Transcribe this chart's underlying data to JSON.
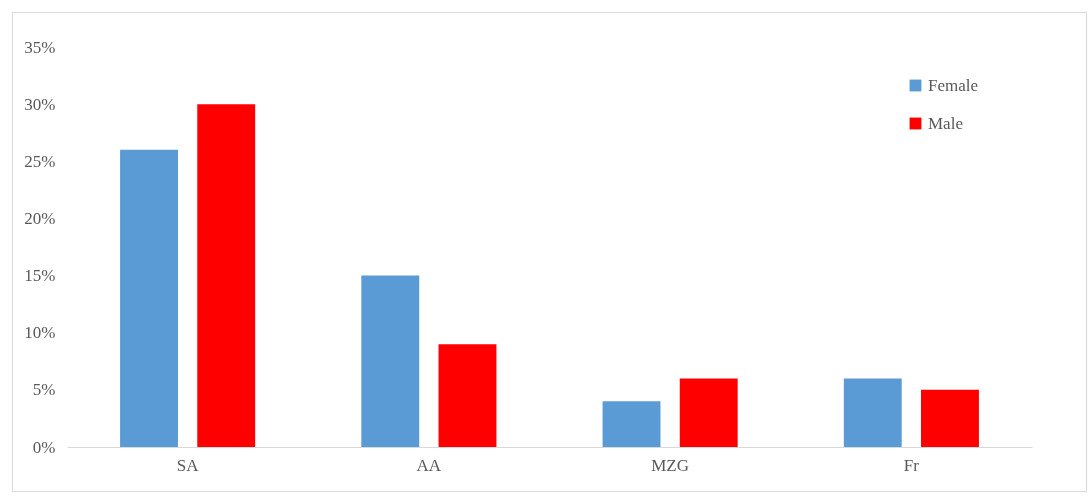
{
  "chart_data": {
    "type": "bar",
    "categories": [
      "SA",
      "AA",
      "MZG",
      "Fr"
    ],
    "series": [
      {
        "name": "Female",
        "color": "#5b9bd5",
        "values": [
          26,
          15,
          4,
          6
        ]
      },
      {
        "name": "Male",
        "color": "#ff0000",
        "values": [
          30,
          9,
          6,
          5
        ]
      }
    ],
    "ylim": [
      0,
      35
    ],
    "yticks": [
      {
        "value": 0,
        "label": "0%"
      },
      {
        "value": 5,
        "label": "5%"
      },
      {
        "value": 10,
        "label": "10%"
      },
      {
        "value": 15,
        "label": "15%"
      },
      {
        "value": 20,
        "label": "20%"
      },
      {
        "value": 25,
        "label": "25%"
      },
      {
        "value": 30,
        "label": "30%"
      },
      {
        "value": 35,
        "label": "35%"
      }
    ],
    "grid": false,
    "legend": "top right"
  }
}
